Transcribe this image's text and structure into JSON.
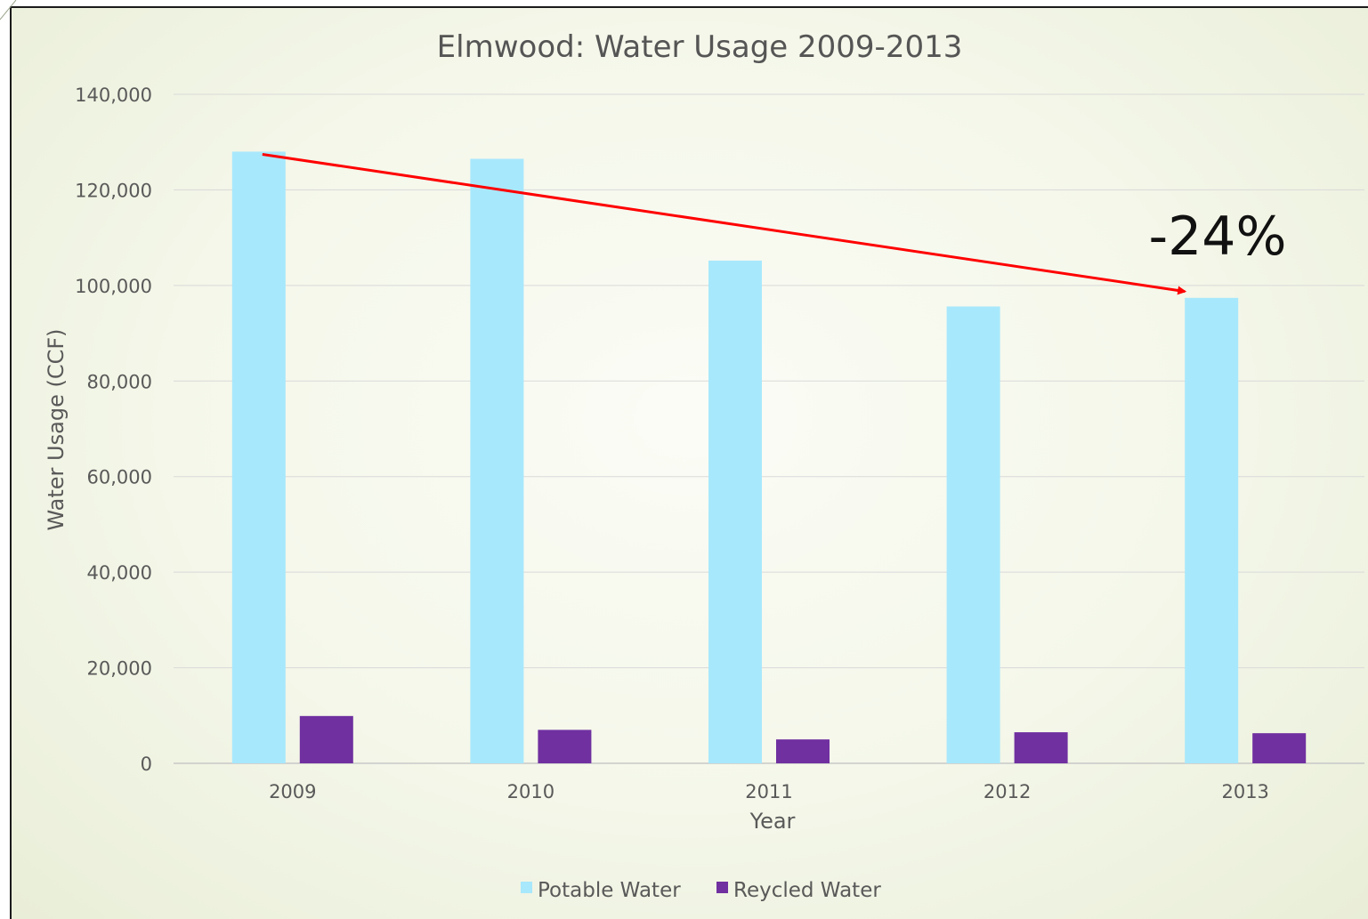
{
  "chart_data": {
    "type": "bar",
    "title": "Elmwood: Water Usage 2009-2013",
    "xlabel": "Year",
    "ylabel": "Water Usage (CCF)",
    "categories": [
      "2009",
      "2010",
      "2011",
      "2012",
      "2013"
    ],
    "series": [
      {
        "name": "Potable Water",
        "color": "#a8e8fc",
        "values": [
          128000,
          126500,
          105200,
          95600,
          97400
        ]
      },
      {
        "name": "Reycled Water",
        "color": "#7030a0",
        "values": [
          9900,
          7000,
          5000,
          6500,
          6300
        ]
      }
    ],
    "ylim": [
      0,
      140000
    ],
    "yticks": [
      0,
      20000,
      40000,
      60000,
      80000,
      100000,
      120000,
      140000
    ],
    "ytick_labels": [
      "0",
      "20,000",
      "40,000",
      "60,000",
      "80,000",
      "100,000",
      "120,000",
      "140,000"
    ],
    "grid": true,
    "legend_position": "bottom",
    "annotation": {
      "text": "-24%",
      "arrow_color": "#ff0000",
      "arrow_from": {
        "category": "2009",
        "value": 128000
      },
      "arrow_to": {
        "category": "2013",
        "value": 98000
      }
    }
  }
}
